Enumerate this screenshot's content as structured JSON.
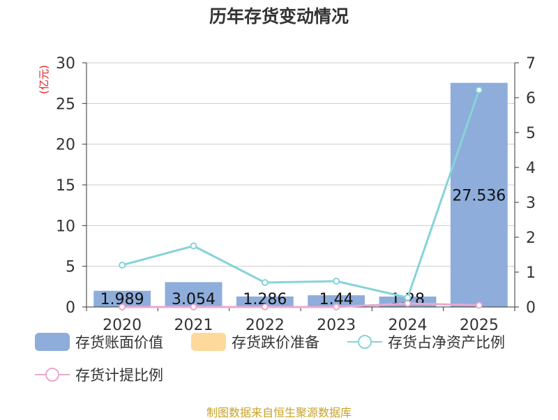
{
  "colors": {
    "bar_book_value": "#8eaddb",
    "bar_provision": "#fdd99b",
    "line_ratio_net_assets": "#86d3d8",
    "line_provision_ratio": "#e9a8cf",
    "unit_label": "#e02020",
    "source": "#c9a227",
    "title": "#333333"
  },
  "chart_data": {
    "type": "bar",
    "title": "历年存货变动情况",
    "categories": [
      "2020",
      "2021",
      "2022",
      "2023",
      "2024",
      "2025"
    ],
    "y_left": {
      "label": "(亿元)",
      "ylim": [
        0,
        30
      ],
      "ticks": [
        "0",
        "5",
        "10",
        "15",
        "20",
        "25",
        "30"
      ]
    },
    "y_right": {
      "ylim": [
        0,
        7
      ],
      "ticks": [
        "0",
        "1",
        "2",
        "3",
        "4",
        "5",
        "6",
        "7"
      ]
    },
    "grid": true,
    "legend_position": "bottom",
    "series": [
      {
        "name": "存货账面价值",
        "type": "bar",
        "axis": "left",
        "values": [
          1.989,
          3.054,
          1.286,
          1.44,
          1.28,
          27.536
        ],
        "labels": [
          "1.989",
          "3.054",
          "1.286",
          "1.44",
          "1.28",
          "27.536"
        ]
      },
      {
        "name": "存货跌价准备",
        "type": "bar",
        "axis": "left",
        "values": [
          0,
          0,
          0,
          0,
          0,
          0
        ]
      },
      {
        "name": "存货占净资产比例",
        "type": "line",
        "axis": "right",
        "values": [
          1.2,
          1.75,
          0.7,
          0.74,
          0.27,
          6.22
        ]
      },
      {
        "name": "存货计提比例",
        "type": "line",
        "axis": "right",
        "values": [
          0,
          0,
          0,
          0,
          0.1,
          0.05
        ]
      }
    ]
  },
  "source_text": "制图数据来自恒生聚源数据库"
}
